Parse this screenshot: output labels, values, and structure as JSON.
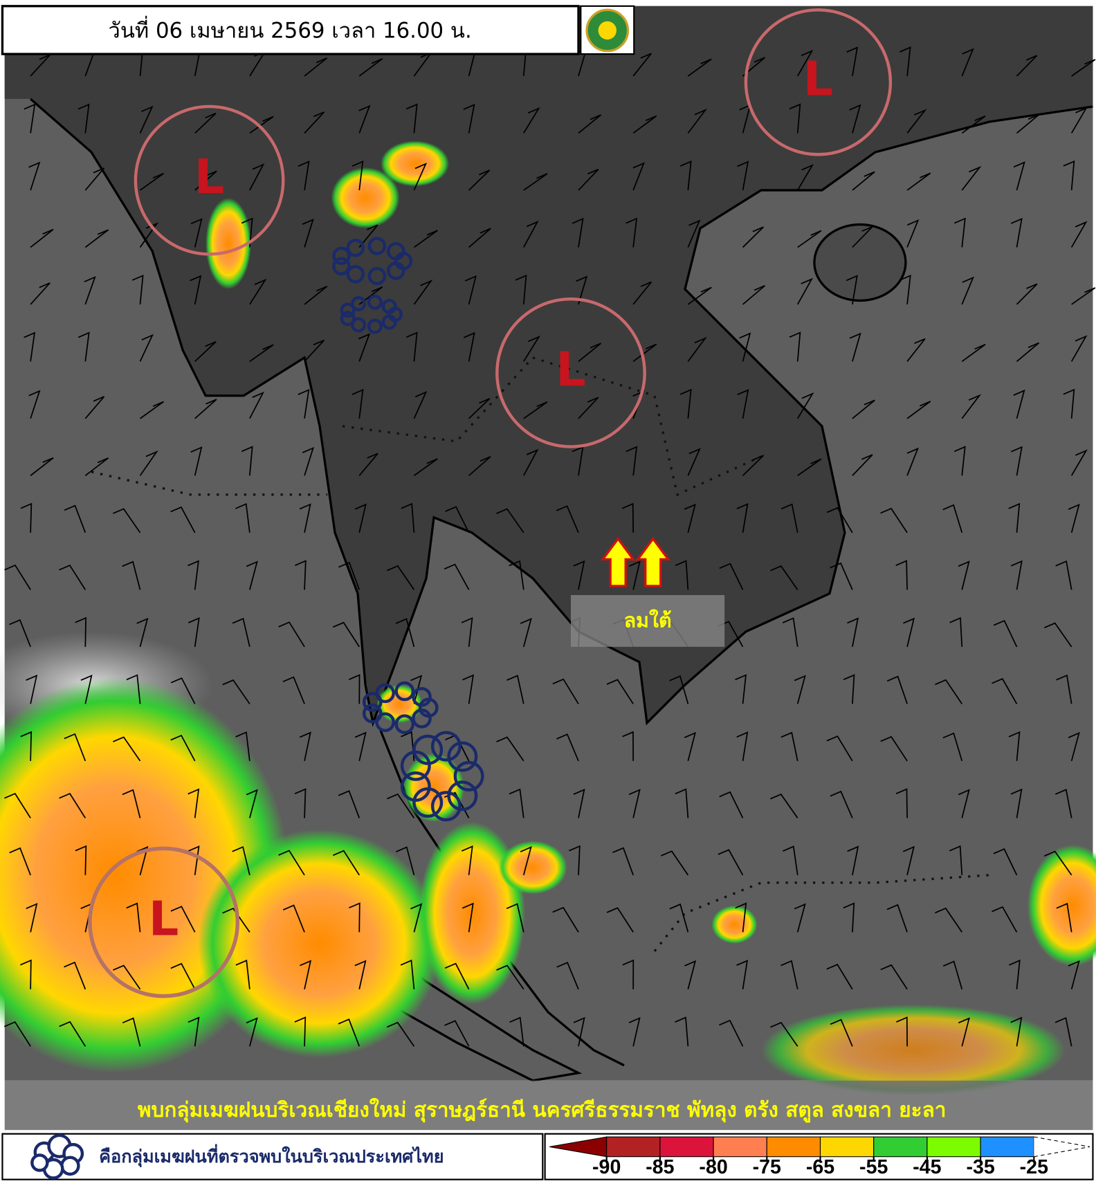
{
  "header": {
    "date_text": "วันที่ 06 เมษายน 2569 เวลา 16.00 น."
  },
  "map": {
    "low_pressure": [
      {
        "label": "L"
      },
      {
        "label": "L"
      },
      {
        "label": "L"
      },
      {
        "label": "L"
      }
    ],
    "wind_note": "ลมใต้",
    "summary": "พบกลุ่มเมฆฝนบริเวณเชียงใหม่ สุราษฎร์ธานี นครศรีธรรมราช พัทลุง ตรัง สตูล สงขลา  ยะลา"
  },
  "legend": {
    "cloud_symbol_text": "คือกลุ่มเมฆฝนที่ตรวจพบในบริเวณประเทศไทย",
    "scale": {
      "colors": [
        "#8b0000",
        "#b22222",
        "#dc143c",
        "#ff7f50",
        "#ff8c00",
        "#ffd700",
        "#32cd32",
        "#7cfc00",
        "#1e90ff"
      ],
      "ticks": [
        -90,
        -85,
        -80,
        -75,
        -65,
        -55,
        -45,
        -35,
        -25
      ]
    }
  }
}
